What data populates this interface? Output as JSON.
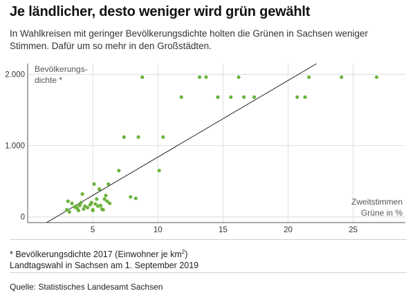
{
  "title": "Je ländlicher, desto weniger wird grün gewählt",
  "subtitle": "In Wahlkreisen mit geringer Bevölkerungsdichte holten die Grünen in Sachsen weniger Stimmen. Dafür um so mehr in den Großstädten.",
  "footnote": {
    "prefix": "* Bevölkerungsdichte 2017 (Einwohner je km",
    "superscript": "2",
    "suffix": ")"
  },
  "election_note": "Landtagswahl in Sachsen am 1. September 2019",
  "source": "Quelle: Statistisches Landesamt Sachsen",
  "colors": {
    "points": "#6cb33e",
    "trend": "#222222",
    "grid": "#dddddd"
  },
  "chart_data": {
    "type": "scatter",
    "title": "Je ländlicher, desto weniger wird grün gewählt",
    "xlabel_lines": [
      "Zweitstimmen",
      "Grüne in %"
    ],
    "ylabel_lines": [
      "Bevölkerungs-",
      "dichte *"
    ],
    "xlim": [
      0,
      29
    ],
    "ylim": [
      -80,
      2150
    ],
    "xticks": [
      5,
      10,
      15,
      20,
      25
    ],
    "xtick_labels": [
      "5",
      "10",
      "15",
      "20",
      "25"
    ],
    "yticks": [
      0,
      1000,
      2000
    ],
    "ytick_labels": [
      "0",
      "1.000",
      "2.000"
    ],
    "trendline": [
      [
        0.8,
        -150
      ],
      [
        22.2,
        2150
      ]
    ],
    "points": [
      [
        3.0,
        100
      ],
      [
        3.1,
        220
      ],
      [
        3.2,
        70
      ],
      [
        3.4,
        190
      ],
      [
        3.6,
        140
      ],
      [
        3.7,
        150
      ],
      [
        3.8,
        120
      ],
      [
        3.9,
        90
      ],
      [
        4.0,
        160
      ],
      [
        4.1,
        200
      ],
      [
        4.2,
        320
      ],
      [
        4.3,
        110
      ],
      [
        4.4,
        150
      ],
      [
        4.6,
        130
      ],
      [
        4.8,
        170
      ],
      [
        4.9,
        200
      ],
      [
        5.0,
        100
      ],
      [
        5.0,
        90
      ],
      [
        5.1,
        460
      ],
      [
        5.2,
        180
      ],
      [
        5.3,
        250
      ],
      [
        5.4,
        150
      ],
      [
        5.5,
        390
      ],
      [
        5.6,
        160
      ],
      [
        5.7,
        110
      ],
      [
        5.8,
        100
      ],
      [
        5.9,
        250
      ],
      [
        6.0,
        300
      ],
      [
        6.1,
        220
      ],
      [
        6.2,
        460
      ],
      [
        6.3,
        190
      ],
      [
        7.0,
        650
      ],
      [
        7.4,
        1120
      ],
      [
        7.9,
        280
      ],
      [
        8.3,
        260
      ],
      [
        8.5,
        1120
      ],
      [
        8.8,
        1960
      ],
      [
        10.1,
        650
      ],
      [
        10.4,
        1120
      ],
      [
        11.8,
        1680
      ],
      [
        13.2,
        1960
      ],
      [
        13.7,
        1960
      ],
      [
        14.6,
        1680
      ],
      [
        15.6,
        1680
      ],
      [
        16.2,
        1960
      ],
      [
        16.6,
        1680
      ],
      [
        17.4,
        1680
      ],
      [
        20.7,
        1680
      ],
      [
        21.3,
        1680
      ],
      [
        21.6,
        1960
      ],
      [
        24.1,
        1960
      ],
      [
        26.8,
        1960
      ]
    ]
  }
}
